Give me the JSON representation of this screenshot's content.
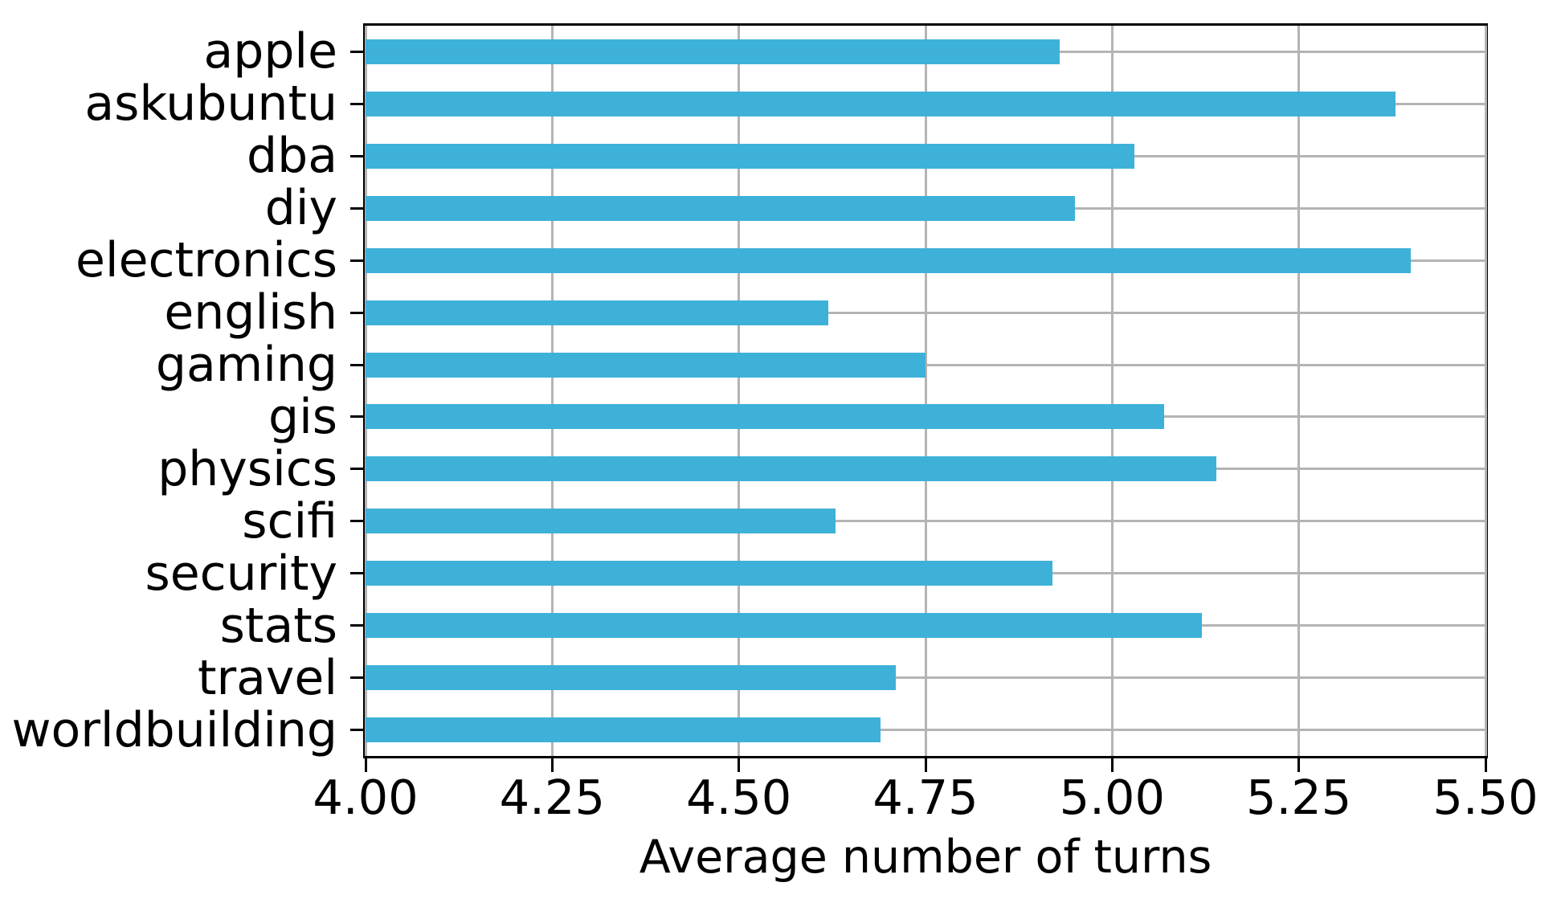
{
  "figure": {
    "background": "#ffffff"
  },
  "chart_data": {
    "type": "bar",
    "orientation": "horizontal",
    "title": "",
    "xlabel": "Average number of turns",
    "ylabel": "",
    "categories": [
      "apple",
      "askubuntu",
      "dba",
      "diy",
      "electronics",
      "english",
      "gaming",
      "gis",
      "physics",
      "scifi",
      "security",
      "stats",
      "travel",
      "worldbuilding"
    ],
    "values": [
      4.93,
      5.38,
      5.03,
      4.95,
      5.4,
      4.62,
      4.75,
      5.07,
      5.14,
      4.63,
      4.92,
      5.12,
      4.71,
      4.69
    ],
    "xlim": [
      4.0,
      5.5
    ],
    "xticks": [
      4.0,
      4.25,
      4.5,
      4.75,
      5.0,
      5.25,
      5.5
    ],
    "xtick_labels": [
      "4.00",
      "4.25",
      "4.50",
      "4.75",
      "5.00",
      "5.25",
      "5.50"
    ],
    "grid": true,
    "legend": false,
    "bar_color": "#3eb1d8",
    "grid_color": "#b4b4b4",
    "axis_color": "#000000",
    "text_color": "#000000"
  }
}
